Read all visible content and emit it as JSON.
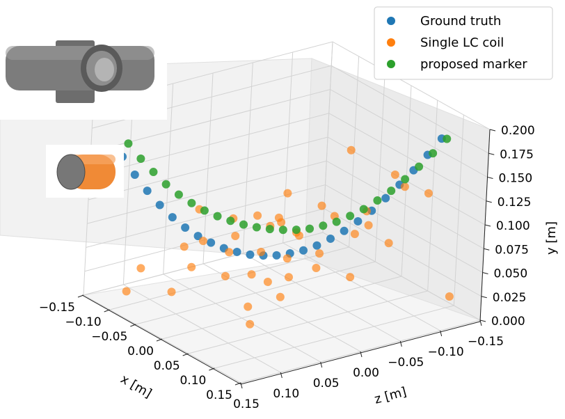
{
  "chart_data": {
    "type": "scatter",
    "projection": "3d",
    "xlabel": "x [m]",
    "ylabel": "y [m]",
    "zlabel": "z [m]",
    "xlim": [
      -0.15,
      0.15
    ],
    "zlim": [
      -0.15,
      0.15
    ],
    "ylim": [
      0.0,
      0.2
    ],
    "x_ticks": [
      "−0.15",
      "−0.10",
      "−0.05",
      "0.00",
      "0.05",
      "0.10",
      "0.15"
    ],
    "z_ticks": [
      "0.15",
      "0.10",
      "0.05",
      "0.00",
      "−0.05",
      "−0.10",
      "−0.15"
    ],
    "y_ticks": [
      "0.000",
      "0.025",
      "0.050",
      "0.075",
      "0.100",
      "0.125",
      "0.150",
      "0.175",
      "0.200"
    ],
    "grid": true,
    "legend_position": "top-right",
    "series": [
      {
        "name": "Ground truth",
        "color": "#1f77b4",
        "points": [
          [
            -0.12,
            0.15,
            0.13
          ],
          [
            -0.11,
            0.132,
            0.12
          ],
          [
            -0.1,
            0.116,
            0.11
          ],
          [
            -0.09,
            0.102,
            0.1
          ],
          [
            -0.08,
            0.09,
            0.09
          ],
          [
            -0.07,
            0.08,
            0.08
          ],
          [
            -0.06,
            0.072,
            0.07
          ],
          [
            -0.05,
            0.066,
            0.06
          ],
          [
            -0.04,
            0.061,
            0.05
          ],
          [
            -0.03,
            0.058,
            0.04
          ],
          [
            -0.02,
            0.056,
            0.03
          ],
          [
            -0.01,
            0.056,
            0.02
          ],
          [
            0.0,
            0.057,
            0.01
          ],
          [
            0.01,
            0.06,
            0.0
          ],
          [
            0.02,
            0.064,
            -0.01
          ],
          [
            0.03,
            0.07,
            -0.02
          ],
          [
            0.04,
            0.078,
            -0.03
          ],
          [
            0.05,
            0.087,
            -0.04
          ],
          [
            0.06,
            0.098,
            -0.05
          ],
          [
            0.07,
            0.11,
            -0.06
          ],
          [
            0.08,
            0.124,
            -0.07
          ],
          [
            0.09,
            0.139,
            -0.08
          ],
          [
            0.1,
            0.155,
            -0.09
          ],
          [
            0.11,
            0.172,
            -0.1
          ],
          [
            0.12,
            0.19,
            -0.11
          ]
        ]
      },
      {
        "name": "Single LC coil",
        "color": "#ff7f0e",
        "points": [
          [
            -0.05,
            0.07,
            0.07
          ],
          [
            -0.03,
            0.06,
            0.05
          ],
          [
            -0.04,
            0.05,
            0.09
          ],
          [
            -0.02,
            0.04,
            0.06
          ],
          [
            0.0,
            0.065,
            0.03
          ],
          [
            0.02,
            0.06,
            0.01
          ],
          [
            0.03,
            0.045,
            0.04
          ],
          [
            0.05,
            0.07,
            -0.01
          ],
          [
            0.04,
            0.03,
            0.03
          ],
          [
            -0.06,
            0.02,
            0.1
          ],
          [
            0.01,
            0.015,
            0.05
          ],
          [
            0.03,
            0.005,
            0.06
          ],
          [
            -0.09,
            0.04,
            0.12
          ],
          [
            -0.1,
            0.015,
            0.13
          ],
          [
            0.02,
            0.085,
            0.0
          ],
          [
            0.0,
            0.09,
            0.02
          ],
          [
            0.07,
            0.09,
            -0.04
          ],
          [
            0.08,
            0.1,
            -0.05
          ],
          [
            0.06,
            0.11,
            -0.02
          ],
          [
            -0.02,
            0.08,
            0.05
          ],
          [
            -0.07,
            0.06,
            0.08
          ],
          [
            0.1,
            0.14,
            -0.08
          ],
          [
            0.05,
            0.12,
            -0.01
          ],
          [
            0.09,
            0.08,
            -0.07
          ],
          [
            -0.01,
            0.1,
            0.03
          ],
          [
            0.02,
            0.1,
            0.02
          ],
          [
            0.04,
            0.09,
            0.01
          ],
          [
            -0.04,
            0.09,
            0.04
          ],
          [
            0.08,
            0.05,
            -0.03
          ],
          [
            0.12,
            0.02,
            -0.13
          ],
          [
            0.11,
            0.16,
            -0.06
          ],
          [
            0.13,
            0.14,
            -0.09
          ],
          [
            0.07,
            0.18,
            -0.03
          ],
          [
            -0.03,
            0.03,
            0.02
          ],
          [
            0.01,
            0.035,
            0.0
          ],
          [
            0.06,
            0.06,
            0.0
          ],
          [
            0.03,
            0.11,
            0.03
          ],
          [
            -0.06,
            0.1,
            0.07
          ],
          [
            0.09,
            0.12,
            -0.04
          ],
          [
            0.0,
            0.12,
            0.0
          ]
        ]
      },
      {
        "name": "proposed marker",
        "color": "#2ca02c",
        "points": [
          [
            -0.125,
            0.16,
            0.12
          ],
          [
            -0.115,
            0.145,
            0.11
          ],
          [
            -0.105,
            0.132,
            0.1
          ],
          [
            -0.095,
            0.12,
            0.09
          ],
          [
            -0.085,
            0.11,
            0.08
          ],
          [
            -0.075,
            0.102,
            0.07
          ],
          [
            -0.065,
            0.095,
            0.06
          ],
          [
            -0.055,
            0.09,
            0.05
          ],
          [
            -0.045,
            0.086,
            0.04
          ],
          [
            -0.035,
            0.083,
            0.03
          ],
          [
            -0.025,
            0.081,
            0.02
          ],
          [
            -0.015,
            0.08,
            0.01
          ],
          [
            -0.005,
            0.08,
            0.0
          ],
          [
            0.005,
            0.081,
            -0.01
          ],
          [
            0.015,
            0.083,
            -0.02
          ],
          [
            0.025,
            0.087,
            -0.03
          ],
          [
            0.035,
            0.092,
            -0.04
          ],
          [
            0.045,
            0.099,
            -0.05
          ],
          [
            0.055,
            0.107,
            -0.06
          ],
          [
            0.065,
            0.117,
            -0.07
          ],
          [
            0.075,
            0.128,
            -0.08
          ],
          [
            0.085,
            0.141,
            -0.09
          ],
          [
            0.095,
            0.155,
            -0.1
          ],
          [
            0.105,
            0.17,
            -0.11
          ],
          [
            0.115,
            0.186,
            -0.12
          ]
        ]
      }
    ]
  }
}
